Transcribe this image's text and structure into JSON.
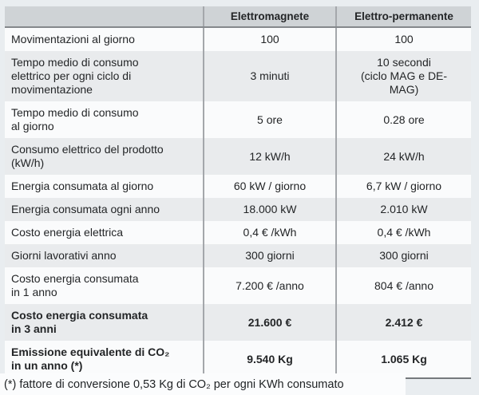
{
  "table": {
    "header": {
      "col_label": "",
      "col_electromagnet": "Elettromagnete",
      "col_electropermanent": "Elettro-permanente"
    },
    "rows": [
      {
        "label": "Movimentazioni al giorno",
        "values": [
          "100",
          "100"
        ]
      },
      {
        "label": "Tempo medio di consumo\nelettrico per ogni ciclo di\nmovimentazione",
        "values": [
          "3 minuti",
          "10 secondi\n(ciclo MAG e DE-\nMAG)"
        ]
      },
      {
        "label": "Tempo medio di consumo\nal giorno",
        "values": [
          "5 ore",
          "0.28 ore"
        ]
      },
      {
        "label": "Consumo elettrico del prodotto\n(kW/h)",
        "values": [
          "12 kW/h",
          "24 kW/h"
        ]
      },
      {
        "label": "Energia consumata al giorno",
        "values": [
          "60 kW / giorno",
          "6,7 kW / giorno"
        ]
      },
      {
        "label": "Energia consumata ogni anno",
        "values": [
          "18.000 kW",
          "2.010 kW"
        ]
      },
      {
        "label": "Costo energia elettrica",
        "values": [
          "0,4 € /kWh",
          "0,4 € /kWh"
        ]
      },
      {
        "label": "Giorni lavorativi anno",
        "values": [
          "300 giorni",
          "300 giorni"
        ]
      },
      {
        "label": "Costo energia consumata\nin 1 anno",
        "values": [
          "7.200 € /anno",
          "804 € /anno"
        ]
      },
      {
        "label": "Costo energia consumata\nin 3 anni",
        "values": [
          "21.600 €",
          "2.412 €"
        ],
        "bold": true
      },
      {
        "label": "Emissione equivalente di CO₂\nin un anno (*)",
        "values": [
          "9.540 Kg",
          "1.065 Kg"
        ],
        "bold": true
      }
    ]
  },
  "footnote": "(*) fattore di conversione 0,53 Kg di CO₂ per ogni KWh consumato",
  "colors": {
    "page_background": "#e9edf0",
    "header_background": "#cfd3d6",
    "row_light": "#fafbfc",
    "row_dark": "#e9ebed",
    "divider": "#a4a7ab",
    "header_border": "#84888c",
    "bottom_border": "#75797d",
    "text": "#232527"
  }
}
